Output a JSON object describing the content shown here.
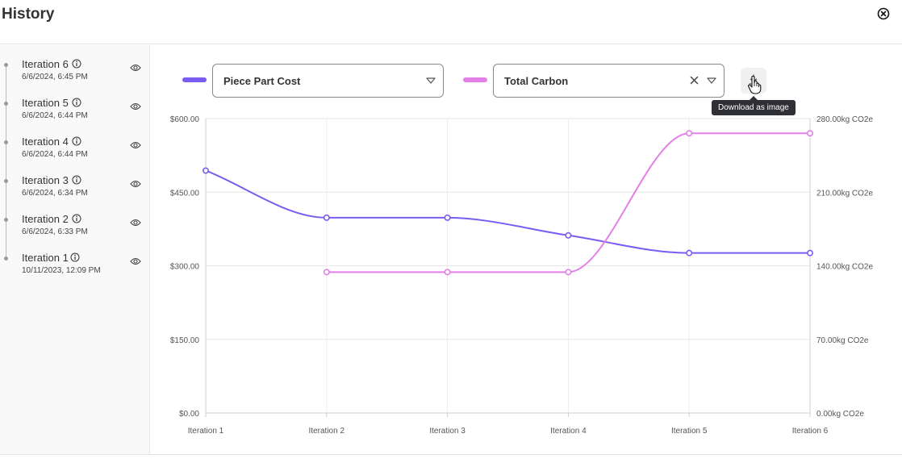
{
  "window": {
    "title": "History"
  },
  "sidebar": {
    "items": [
      {
        "label": "Iteration 6",
        "date": "6/6/2024, 6:45 PM"
      },
      {
        "label": "Iteration 5",
        "date": "6/6/2024, 6:44 PM"
      },
      {
        "label": "Iteration 4",
        "date": "6/6/2024, 6:44 PM"
      },
      {
        "label": "Iteration 3",
        "date": "6/6/2024, 6:34 PM"
      },
      {
        "label": "Iteration 2",
        "date": "6/6/2024, 6:33 PM"
      },
      {
        "label": "Iteration 1",
        "date": "10/11/2023, 12:09 PM"
      }
    ]
  },
  "controls": {
    "left_select": {
      "value": "Piece Part Cost",
      "color": "#7b5cf0"
    },
    "right_select": {
      "value": "Total Carbon",
      "color": "#e47fe8"
    },
    "download_tooltip": "Download as image"
  },
  "icons": {
    "close": "close-circle-icon",
    "info": "info-circle-icon",
    "eye": "eye-icon",
    "caret": "caret-down-icon",
    "clear": "clear-x-icon",
    "download": "download-icon",
    "cursor": "hand-pointer-icon"
  },
  "chart_data": {
    "type": "line",
    "categories": [
      "Iteration 1",
      "Iteration 2",
      "Iteration 3",
      "Iteration 4",
      "Iteration 5",
      "Iteration 6"
    ],
    "series": [
      {
        "name": "Piece Part Cost",
        "axis": "left",
        "color": "#7b5cf0",
        "values": [
          494,
          398,
          398,
          362,
          326,
          326
        ]
      },
      {
        "name": "Total Carbon",
        "axis": "right",
        "color": "#e47fe8",
        "values": [
          null,
          134,
          134,
          134,
          266,
          266
        ]
      }
    ],
    "y_left": {
      "ylim": [
        0,
        600
      ],
      "ticks": [
        "$0.00",
        "$150.00",
        "$300.00",
        "$450.00",
        "$600.00"
      ]
    },
    "y_right": {
      "ylim": [
        0,
        280
      ],
      "ticks": [
        "0.00kg CO2e",
        "70.00kg CO2e",
        "140.00kg CO2e",
        "210.00kg CO2e",
        "280.00kg CO2e"
      ]
    },
    "grid": true
  }
}
